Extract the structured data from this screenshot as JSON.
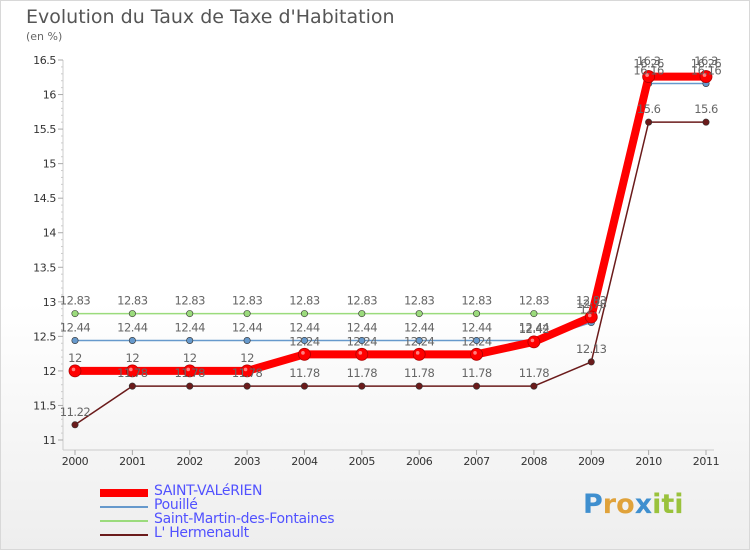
{
  "title": "Evolution du Taux de Taxe d'Habitation",
  "unit_label": "(en %)",
  "logo": {
    "text": "Proxiti",
    "letters": [
      "P",
      "r",
      "o",
      "x",
      "i",
      "t",
      "i"
    ],
    "colors": [
      "#3f8fcf",
      "#e0a23a",
      "#e0a23a",
      "#3f8fcf",
      "#9ac23c",
      "#9ac23c",
      "#9ac23c"
    ]
  },
  "chart_data": {
    "type": "line",
    "title": "Evolution du Taux de Taxe d'Habitation",
    "ylabel": "(en %)",
    "xlabel": "",
    "ylim": [
      11,
      16.5
    ],
    "yticks": [
      "11",
      "11.5",
      "12",
      "12.5",
      "13",
      "13.5",
      "14",
      "14.5",
      "15",
      "15.5",
      "16",
      "16.5"
    ],
    "x": [
      "2000",
      "2001",
      "2002",
      "2003",
      "2004",
      "2005",
      "2006",
      "2007",
      "2008",
      "2009",
      "2010",
      "2011"
    ],
    "series": [
      {
        "name": "L' Hermenault",
        "color": "#6b1b1b",
        "values": [
          11.22,
          11.78,
          11.78,
          11.78,
          11.78,
          11.78,
          11.78,
          11.78,
          11.78,
          12.13,
          15.6,
          15.6
        ],
        "labels": [
          "11.22",
          "11.78",
          "11.78",
          "11.78",
          "11.78",
          "11.78",
          "11.78",
          "11.78",
          "11.78",
          "12.13",
          "15.6",
          "15.6"
        ]
      },
      {
        "name": "Saint-Martin-des-Fontaines",
        "color": "#9bdb7c",
        "values": [
          12.83,
          12.83,
          12.83,
          12.83,
          12.83,
          12.83,
          12.83,
          12.83,
          12.83,
          12.83,
          16.3,
          16.3
        ],
        "labels": [
          "12.83",
          "12.83",
          "12.83",
          "12.83",
          "12.83",
          "12.83",
          "12.83",
          "12.83",
          "12.83",
          "12.83",
          "16.3",
          "16.3"
        ]
      },
      {
        "name": "Pouillé",
        "color": "#6699cc",
        "values": [
          12.44,
          12.44,
          12.44,
          12.44,
          12.44,
          12.44,
          12.44,
          12.44,
          12.44,
          12.7,
          16.16,
          16.16
        ],
        "labels": [
          "12.44",
          "12.44",
          "12.44",
          "12.44",
          "12.44",
          "12.44",
          "12.44",
          "12.44",
          "12.44",
          "12.7",
          "16.16",
          "16.16"
        ]
      },
      {
        "name": "SAINT-VALéRIEN",
        "color": "#ff0000",
        "values": [
          12,
          12,
          12,
          12,
          12.24,
          12.24,
          12.24,
          12.24,
          12.42,
          12.78,
          16.26,
          16.26
        ],
        "labels": [
          "12",
          "12",
          "12",
          "12",
          "12.24",
          "12.24",
          "12.24",
          "12.24",
          "12.42",
          "12.78",
          "16.26",
          "16.26"
        ]
      }
    ]
  },
  "legend": [
    {
      "label": "SAINT-VALéRIEN",
      "color": "#ff0000"
    },
    {
      "label": "Pouillé",
      "color": "#6699cc"
    },
    {
      "label": "Saint-Martin-des-Fontaines",
      "color": "#9bdb7c"
    },
    {
      "label": "L' Hermenault",
      "color": "#6b1b1b"
    }
  ]
}
